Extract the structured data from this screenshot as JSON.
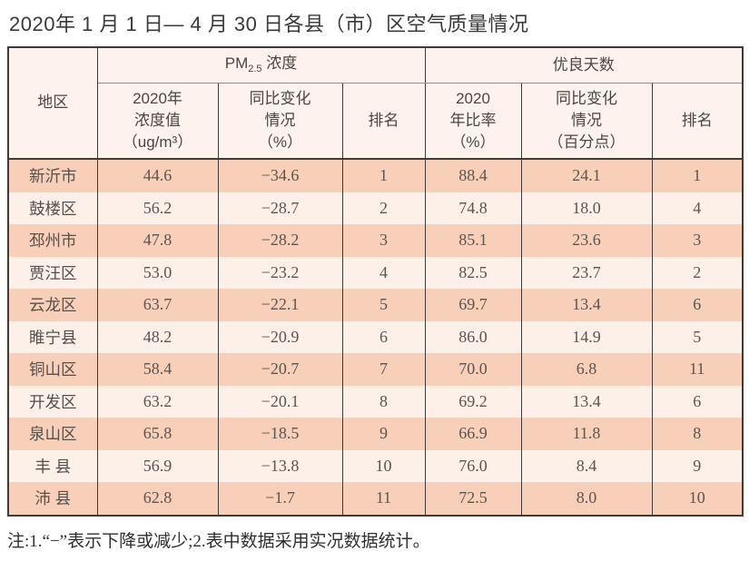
{
  "page": {
    "title": "2020年 1 月 1 日— 4 月 30 日各县（市）区空气质量情况",
    "note": "注:1.“−”表示下降或减少;2.表中数据采用实况数据统计。"
  },
  "table": {
    "header": {
      "region": "地区",
      "pm_group": {
        "prefix": "PM",
        "sub": "2.5",
        "suffix": " 浓度"
      },
      "good_days_group": "优良天数",
      "pm_value": "2020年\n浓度值\n（ug/m³）",
      "pm_change": "同比变化\n情况\n（%）",
      "pm_rank": "排名",
      "days_ratio": "2020\n年比率\n（%）",
      "days_change": "同比变化\n情况\n（百分点）",
      "days_rank": "排名"
    },
    "rows": [
      [
        "新沂市",
        "44.6",
        "−34.6",
        "1",
        "88.4",
        "24.1",
        "1"
      ],
      [
        "鼓楼区",
        "56.2",
        "−28.7",
        "2",
        "74.8",
        "18.0",
        "4"
      ],
      [
        "邳州市",
        "47.8",
        "−28.2",
        "3",
        "85.1",
        "23.6",
        "3"
      ],
      [
        "贾汪区",
        "53.0",
        "−23.2",
        "4",
        "82.5",
        "23.7",
        "2"
      ],
      [
        "云龙区",
        "63.7",
        "−22.1",
        "5",
        "69.7",
        "13.4",
        "6"
      ],
      [
        "睢宁县",
        "48.2",
        "−20.9",
        "6",
        "86.0",
        "14.9",
        "5"
      ],
      [
        "铜山区",
        "58.4",
        "−20.7",
        "7",
        "70.0",
        "6.8",
        "11"
      ],
      [
        "开发区",
        "63.2",
        "−20.1",
        "8",
        "69.2",
        "13.4",
        "6"
      ],
      [
        "泉山区",
        "65.8",
        "−18.5",
        "9",
        "66.9",
        "11.8",
        "8"
      ],
      [
        "丰 县",
        "56.9",
        "−13.8",
        "10",
        "76.0",
        "8.4",
        "9"
      ],
      [
        "沛 县",
        "62.8",
        "−1.7",
        "11",
        "72.5",
        "8.0",
        "10"
      ]
    ]
  }
}
